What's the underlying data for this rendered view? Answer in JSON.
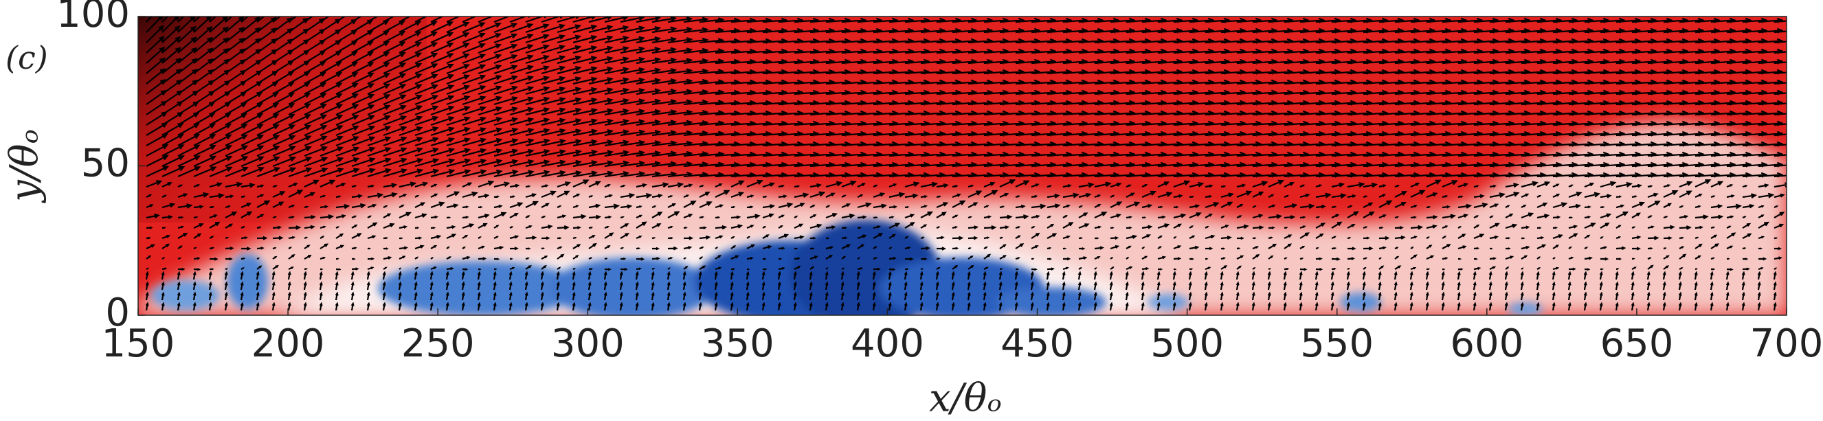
{
  "chart_data": {
    "type": "contour",
    "panel_label": "(c)",
    "x_label": "x/θₒ",
    "y_label": "y/θₒ",
    "xlim": [
      150,
      700
    ],
    "ylim": [
      0,
      100
    ],
    "xticks": [
      150,
      200,
      250,
      300,
      350,
      400,
      450,
      500,
      550,
      600,
      650,
      700
    ],
    "yticks": [
      0,
      50,
      100
    ]
  }
}
